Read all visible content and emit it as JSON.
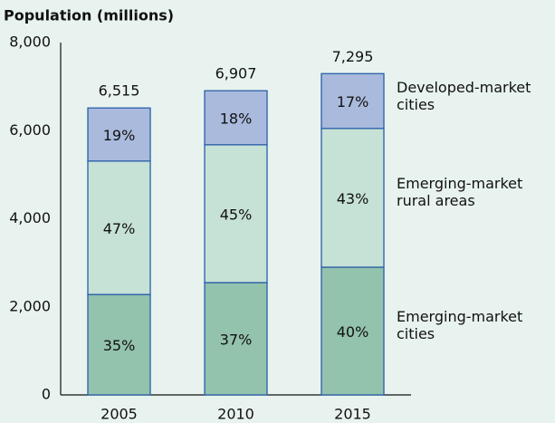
{
  "chart_data": {
    "type": "stacked_bar",
    "title": "Population (millions)",
    "categories": [
      "2005",
      "2010",
      "2015"
    ],
    "series": [
      {
        "name": "Emerging-market cities",
        "color": "#93c2ad",
        "values": [
          2280,
          2550,
          2900
        ],
        "value_labels": [
          "35%",
          "37%",
          "40%"
        ]
      },
      {
        "name": "Emerging-market rural areas",
        "color": "#c6e1d6",
        "values": [
          3030,
          3130,
          3150
        ],
        "value_labels": [
          "47%",
          "45%",
          "43%"
        ]
      },
      {
        "name": "Developed-market cities",
        "color": "#aabadd",
        "values": [
          1205,
          1227,
          1245
        ],
        "value_labels": [
          "19%",
          "18%",
          "17%"
        ]
      }
    ],
    "totals": [
      {
        "value": 6515,
        "label": "6,515"
      },
      {
        "value": 6907,
        "label": "6,907"
      },
      {
        "value": 7295,
        "label": "7,295"
      }
    ],
    "ylim": [
      0,
      8000
    ],
    "yticks": [
      0,
      {
        "value": 2000,
        "label": "2,000"
      },
      {
        "value": 4000,
        "label": "4,000"
      },
      {
        "value": 6000,
        "label": "6,000"
      },
      {
        "value": 8000,
        "label": "8,000"
      }
    ],
    "grid": false
  }
}
